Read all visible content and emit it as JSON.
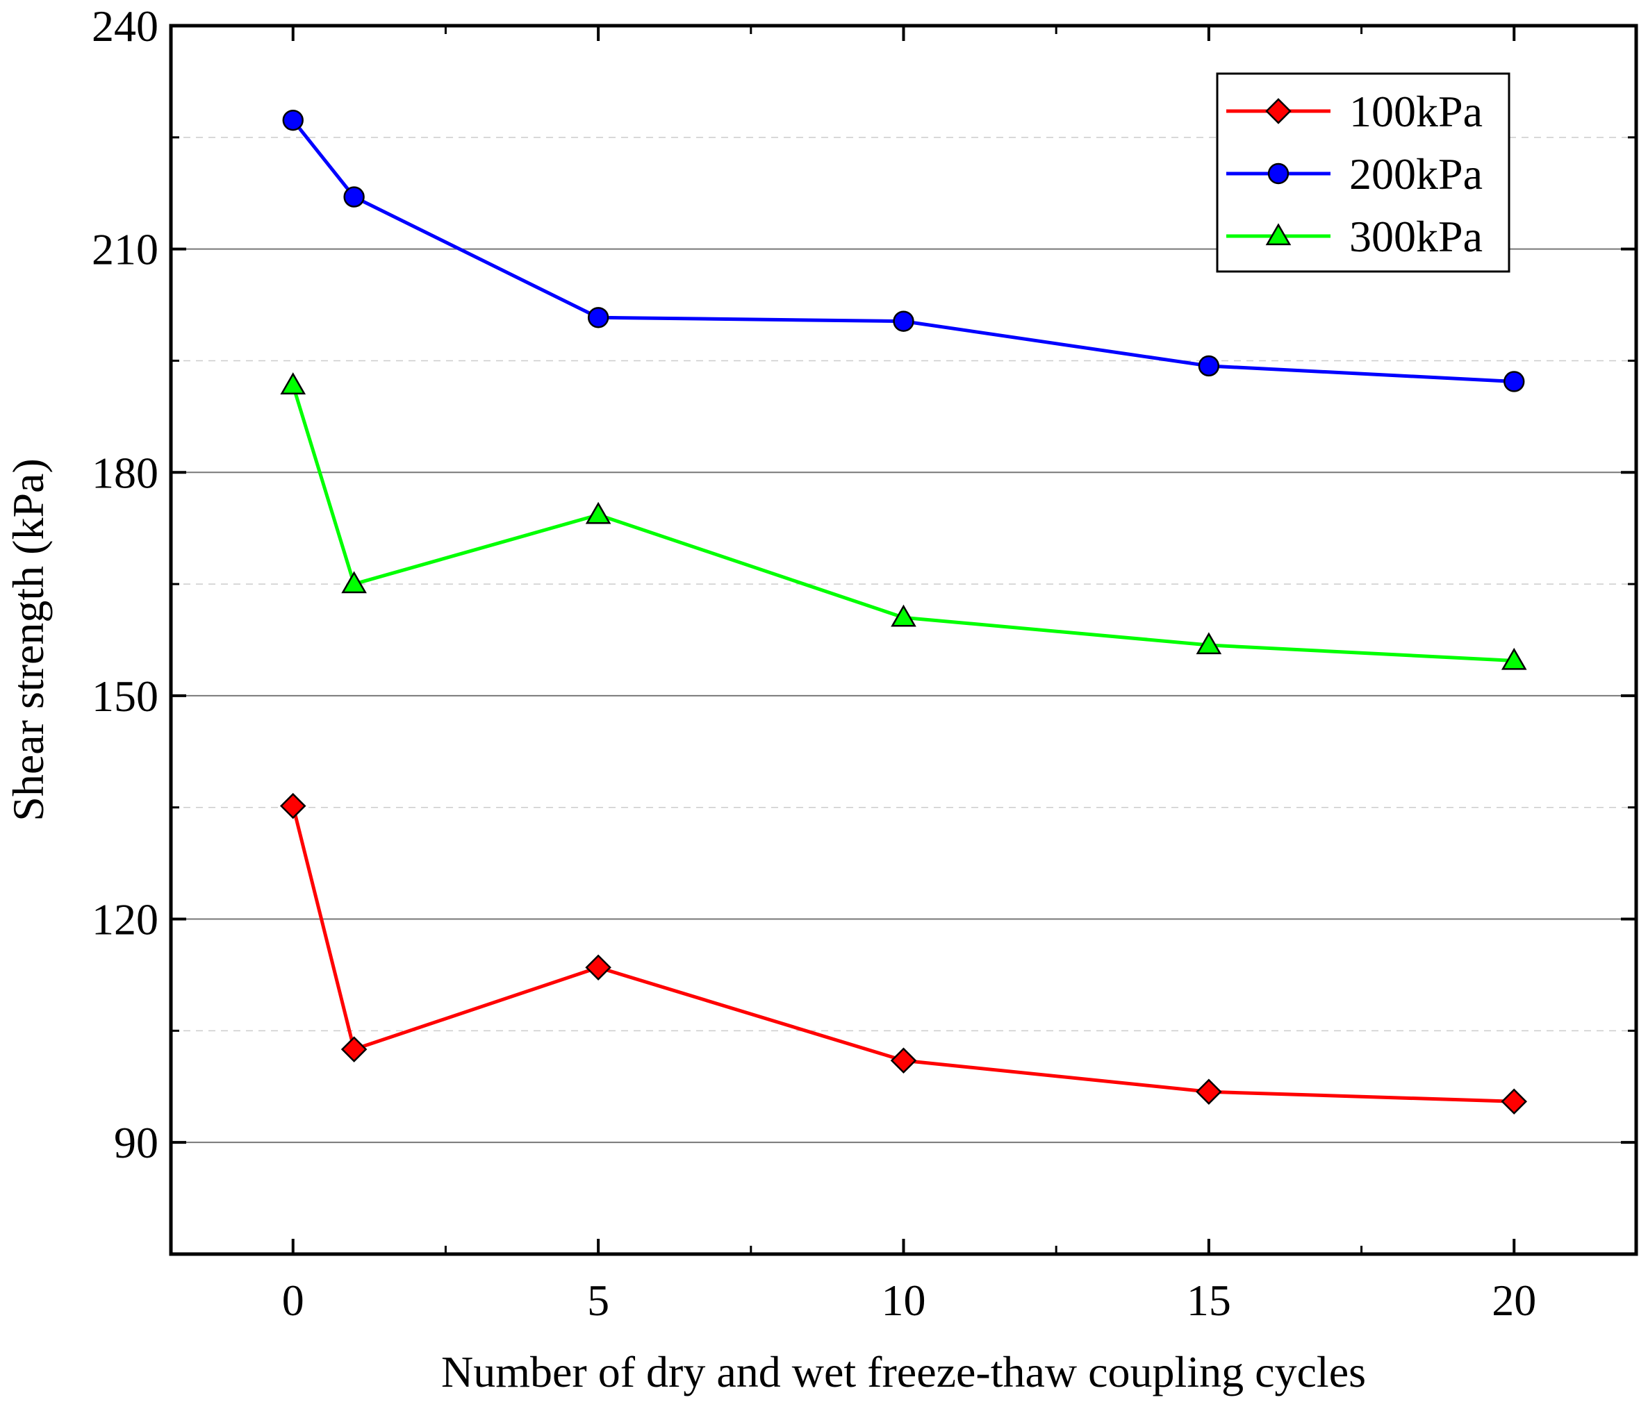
{
  "chart_data": {
    "type": "line",
    "xlabel": "Number of dry and wet freeze-thaw coupling cycles",
    "ylabel": "Shear strength (kPa)",
    "xlim": [
      -2,
      22
    ],
    "ylim": [
      75,
      240
    ],
    "x_ticks": [
      "0",
      "5",
      "10",
      "15",
      "20"
    ],
    "y_ticks": [
      "90",
      "120",
      "150",
      "180",
      "210",
      "240"
    ],
    "grid": "horizontal",
    "legend_position": "top-right",
    "x": [
      0,
      1,
      5,
      10,
      15,
      20
    ],
    "series": [
      {
        "name": "100kPa",
        "color": "#ff0000",
        "marker": "diamond",
        "values": [
          135.2,
          102.5,
          113.5,
          101.0,
          96.8,
          95.5
        ]
      },
      {
        "name": "200kPa",
        "color": "#0000ff",
        "marker": "circle",
        "values": [
          227.3,
          217.0,
          200.8,
          200.3,
          194.3,
          192.2
        ]
      },
      {
        "name": "300kPa",
        "color": "#00ff00",
        "marker": "triangle",
        "values": [
          191.7,
          165.0,
          174.3,
          160.5,
          156.8,
          154.7
        ]
      }
    ]
  }
}
